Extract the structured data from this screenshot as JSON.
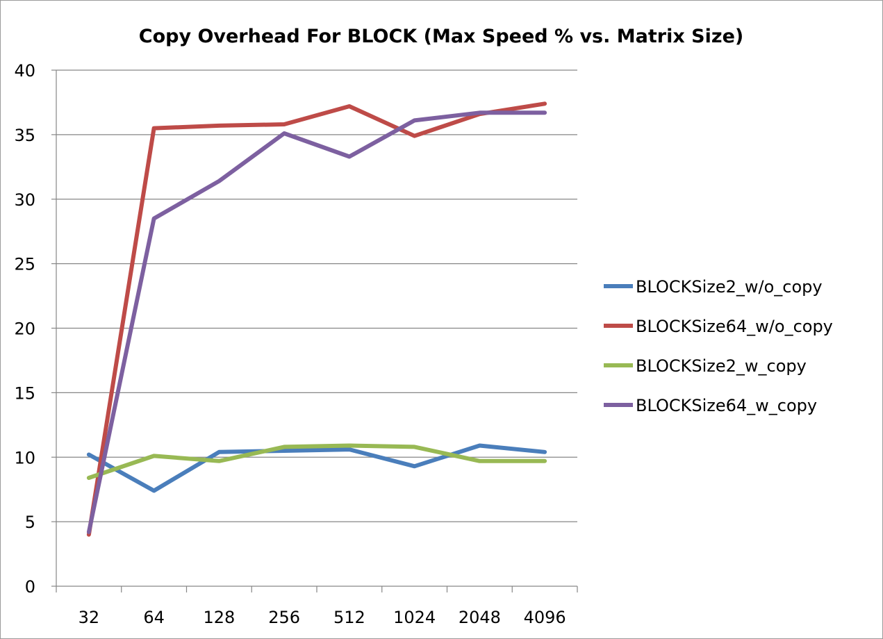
{
  "chart_data": {
    "type": "line",
    "title": "Copy Overhead For BLOCK (Max Speed % vs. Matrix Size)",
    "xlabel": "",
    "ylabel": "",
    "categories": [
      "32",
      "64",
      "128",
      "256",
      "512",
      "1024",
      "2048",
      "4096"
    ],
    "ylim": [
      0,
      40
    ],
    "yticks": [
      "0",
      "5",
      "10",
      "15",
      "20",
      "25",
      "30",
      "35",
      "40"
    ],
    "grid": true,
    "legend_position": "right",
    "series": [
      {
        "name": "BLOCKSize2_w/o_copy",
        "color": "#4a7ebb",
        "values": [
          10.2,
          7.4,
          10.4,
          10.5,
          10.6,
          9.3,
          10.9,
          10.4
        ]
      },
      {
        "name": "BLOCKSize64_w/o_copy",
        "color": "#be4b48",
        "values": [
          4.0,
          35.5,
          35.7,
          35.8,
          37.2,
          34.9,
          36.6,
          37.4
        ]
      },
      {
        "name": "BLOCKSize2_w_copy",
        "color": "#98b954",
        "values": [
          8.4,
          10.1,
          9.7,
          10.8,
          10.9,
          10.8,
          9.7,
          9.7
        ]
      },
      {
        "name": "BLOCKSize64_w_copy",
        "color": "#7d60a0",
        "values": [
          4.2,
          28.5,
          31.4,
          35.1,
          33.3,
          36.1,
          36.7,
          36.7
        ]
      }
    ]
  }
}
